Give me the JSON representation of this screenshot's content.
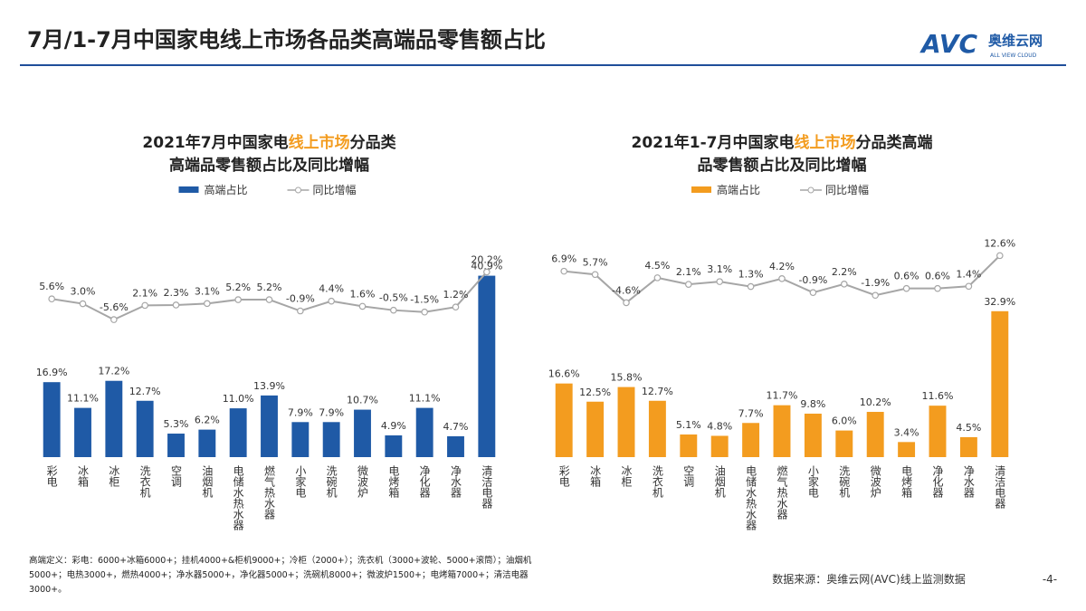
{
  "header": {
    "title": "7月/1-7月中国家电线上市场各品类高端品零售额占比",
    "logo": "AVC",
    "logo_cn": "奥维云网",
    "logo_en": "ALL VIEW CLOUD"
  },
  "chart_data": [
    {
      "type": "combo",
      "title_lines": [
        [
          "2021年7月中国家电",
          "线上市场",
          "分品类"
        ],
        [
          "高端品零售额占比及同比增幅"
        ]
      ],
      "title_highlight_color": "#f39c1f",
      "categories": [
        "彩电",
        "冰箱",
        "冰柜",
        "洗衣机",
        "空调",
        "油烟机",
        "电储水热水器",
        "燃气热水器",
        "小家电",
        "洗碗机",
        "微波炉",
        "电烤箱",
        "净化器",
        "净水器",
        "清洁电器"
      ],
      "series": [
        {
          "name": "高端占比",
          "type": "bar",
          "color": "#1f5aa6",
          "values": [
            16.9,
            11.1,
            17.2,
            12.7,
            5.3,
            6.2,
            11.0,
            13.9,
            7.9,
            7.9,
            10.7,
            4.9,
            11.1,
            4.7,
            40.9
          ],
          "value_labels": [
            "16.9%",
            "11.1%",
            "17.2%",
            "12.7%",
            "5.3%",
            "6.2%",
            "11.0%",
            "13.9%",
            "7.9%",
            "7.9%",
            "10.7%",
            "4.9%",
            "11.1%",
            "4.7%",
            "40.9%"
          ]
        },
        {
          "name": "同比增幅",
          "type": "line",
          "axis": "y2",
          "color": "#a6a6a6",
          "values": [
            5.6,
            3.0,
            -5.6,
            2.1,
            2.3,
            3.1,
            5.2,
            5.2,
            -0.9,
            4.4,
            1.6,
            -0.5,
            -1.5,
            1.2,
            20.2
          ],
          "value_labels": [
            "5.6%",
            "3.0%",
            "-5.6%",
            "2.1%",
            "2.3%",
            "3.1%",
            "5.2%",
            "5.2%",
            "-0.9%",
            "4.4%",
            "1.6%",
            "-0.5%",
            "-1.5%",
            "1.2%",
            "20.2%"
          ]
        }
      ],
      "ylim": [
        0,
        50
      ],
      "y2lim": [
        -80,
        40
      ]
    },
    {
      "type": "combo",
      "title_lines": [
        [
          "2021年1-7月中国家电",
          "线上市场",
          "分品类高端"
        ],
        [
          "品零售额占比及同比增幅"
        ]
      ],
      "title_highlight_color": "#f39c1f",
      "categories": [
        "彩电",
        "冰箱",
        "冰柜",
        "洗衣机",
        "空调",
        "油烟机",
        "电储水热水器",
        "燃气热水器",
        "小家电",
        "洗碗机",
        "微波炉",
        "电烤箱",
        "净化器",
        "净水器",
        "清洁电器"
      ],
      "series": [
        {
          "name": "高端占比",
          "type": "bar",
          "color": "#f39c1f",
          "values": [
            16.6,
            12.5,
            15.8,
            12.7,
            5.1,
            4.8,
            7.7,
            11.7,
            9.8,
            6.0,
            10.2,
            3.4,
            11.6,
            4.5,
            32.9
          ],
          "value_labels": [
            "16.6%",
            "12.5%",
            "15.8%",
            "12.7%",
            "5.1%",
            "4.8%",
            "7.7%",
            "11.7%",
            "9.8%",
            "6.0%",
            "10.2%",
            "3.4%",
            "11.6%",
            "4.5%",
            "32.9%"
          ]
        },
        {
          "name": "同比增幅",
          "type": "line",
          "axis": "y2",
          "color": "#a6a6a6",
          "values": [
            6.9,
            5.7,
            -4.6,
            4.5,
            2.1,
            3.1,
            1.3,
            4.2,
            -0.9,
            2.2,
            -1.9,
            0.6,
            0.6,
            1.4,
            12.6
          ],
          "value_labels": [
            "6.9%",
            "5.7%",
            "-4.6%",
            "4.5%",
            "2.1%",
            "3.1%",
            "1.3%",
            "4.2%",
            "-0.9%",
            "2.2%",
            "-1.9%",
            "0.6%",
            "0.6%",
            "1.4%",
            "12.6%"
          ]
        }
      ],
      "ylim": [
        0,
        50
      ],
      "y2lim": [
        -61,
        20
      ]
    }
  ],
  "footnote": "高端定义：彩电：6000+冰箱6000+；挂机4000+&柜机9000+；冷柜（2000+）；洗衣机（3000+波轮、5000+滚筒）；油烟机5000+；电热3000+，燃热4000+；净水器5000+，净化器5000+；洗碗机8000+；微波炉1500+；电烤箱7000+；清洁电器3000+。",
  "source": "数据来源：奥维云网(AVC)线上监测数据",
  "page_number": "-4-"
}
